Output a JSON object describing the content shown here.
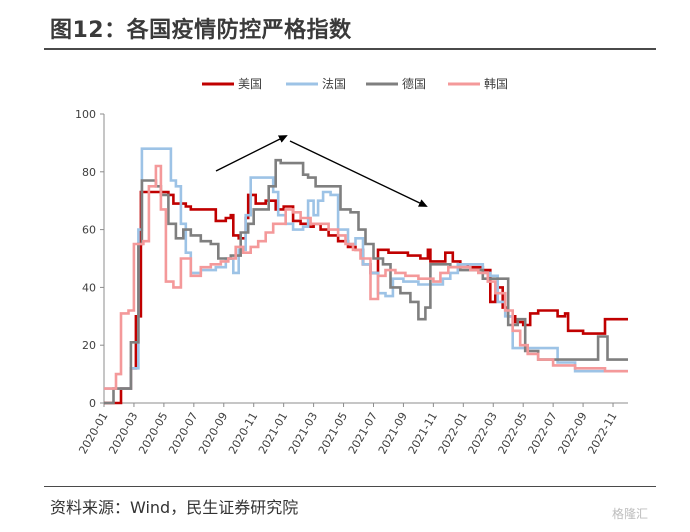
{
  "title": "图12：各国疫情防控严格指数",
  "source": "资料来源：Wind，民生证券研究院",
  "watermark": "格隆汇",
  "chart_data": {
    "type": "line",
    "title": "图12：各国疫情防控严格指数",
    "xlabel": "",
    "ylabel": "",
    "ylim": [
      0,
      100
    ],
    "yticks": [
      0,
      20,
      40,
      60,
      80,
      100
    ],
    "xlim": [
      "2020-01",
      "2022-12"
    ],
    "xticks": [
      "2020-01",
      "2020-03",
      "2020-05",
      "2020-07",
      "2020-09",
      "2020-11",
      "2021-01",
      "2021-03",
      "2021-05",
      "2021-07",
      "2021-09",
      "2021-11",
      "2022-01",
      "2022-03",
      "2022-05",
      "2022-07",
      "2022-09",
      "2022-11"
    ],
    "grid": false,
    "legend_position": "top",
    "series": [
      {
        "name": "美国",
        "color": "#c00000",
        "points": [
          [
            "2020-01-01",
            0
          ],
          [
            "2020-01-25",
            0
          ],
          [
            "2020-02-05",
            5
          ],
          [
            "2020-02-18",
            5
          ],
          [
            "2020-02-25",
            12
          ],
          [
            "2020-03-05",
            30
          ],
          [
            "2020-03-15",
            73
          ],
          [
            "2020-04-20",
            73
          ],
          [
            "2020-05-10",
            72
          ],
          [
            "2020-05-20",
            69
          ],
          [
            "2020-06-15",
            68
          ],
          [
            "2020-06-25",
            67
          ],
          [
            "2020-07-20",
            67
          ],
          [
            "2020-08-15",
            63
          ],
          [
            "2020-09-05",
            64
          ],
          [
            "2020-09-15",
            65
          ],
          [
            "2020-09-20",
            58
          ],
          [
            "2020-10-01",
            57
          ],
          [
            "2020-10-15",
            64
          ],
          [
            "2020-10-20",
            72
          ],
          [
            "2020-11-05",
            69
          ],
          [
            "2020-11-25",
            70
          ],
          [
            "2020-12-15",
            67
          ],
          [
            "2021-01-01",
            68
          ],
          [
            "2021-01-20",
            63
          ],
          [
            "2021-02-05",
            62
          ],
          [
            "2021-02-20",
            61
          ],
          [
            "2021-03-01",
            62
          ],
          [
            "2021-03-15",
            60
          ],
          [
            "2021-04-01",
            58
          ],
          [
            "2021-04-20",
            56
          ],
          [
            "2021-05-10",
            54
          ],
          [
            "2021-05-25",
            53
          ],
          [
            "2021-06-10",
            48
          ],
          [
            "2021-06-25",
            45
          ],
          [
            "2021-07-10",
            53
          ],
          [
            "2021-08-01",
            52
          ],
          [
            "2021-09-10",
            51
          ],
          [
            "2021-10-05",
            50
          ],
          [
            "2021-10-20",
            53
          ],
          [
            "2021-10-25",
            49
          ],
          [
            "2021-11-10",
            49
          ],
          [
            "2021-11-25",
            52
          ],
          [
            "2021-12-10",
            49
          ],
          [
            "2021-12-25",
            48
          ],
          [
            "2022-01-10",
            47
          ],
          [
            "2022-01-25",
            47
          ],
          [
            "2022-02-10",
            46
          ],
          [
            "2022-02-25",
            35
          ],
          [
            "2022-03-05",
            40
          ],
          [
            "2022-03-20",
            33
          ],
          [
            "2022-04-01",
            30
          ],
          [
            "2022-04-15",
            28
          ],
          [
            "2022-05-01",
            27
          ],
          [
            "2022-05-15",
            31
          ],
          [
            "2022-06-01",
            32
          ],
          [
            "2022-06-20",
            32
          ],
          [
            "2022-07-10",
            30
          ],
          [
            "2022-07-25",
            31
          ],
          [
            "2022-08-01",
            25
          ],
          [
            "2022-09-01",
            24
          ],
          [
            "2022-10-05",
            24
          ],
          [
            "2022-10-15",
            29
          ],
          [
            "2022-11-15",
            29
          ],
          [
            "2022-12-01",
            29
          ]
        ]
      },
      {
        "name": "法国",
        "color": "#9dc3e6",
        "points": [
          [
            "2020-01-01",
            5
          ],
          [
            "2020-02-10",
            5
          ],
          [
            "2020-02-25",
            12
          ],
          [
            "2020-03-10",
            60
          ],
          [
            "2020-03-17",
            88
          ],
          [
            "2020-05-01",
            88
          ],
          [
            "2020-05-15",
            77
          ],
          [
            "2020-05-25",
            75
          ],
          [
            "2020-06-05",
            62
          ],
          [
            "2020-06-15",
            52
          ],
          [
            "2020-06-25",
            45
          ],
          [
            "2020-07-15",
            46
          ],
          [
            "2020-08-15",
            47
          ],
          [
            "2020-09-05",
            50
          ],
          [
            "2020-09-20",
            45
          ],
          [
            "2020-10-01",
            53
          ],
          [
            "2020-10-15",
            65
          ],
          [
            "2020-10-25",
            78
          ],
          [
            "2020-11-10",
            78
          ],
          [
            "2020-12-10",
            73
          ],
          [
            "2020-12-20",
            65
          ],
          [
            "2021-01-05",
            62
          ],
          [
            "2021-01-20",
            60
          ],
          [
            "2021-02-10",
            61
          ],
          [
            "2021-02-20",
            70
          ],
          [
            "2021-03-01",
            65
          ],
          [
            "2021-03-10",
            70
          ],
          [
            "2021-03-20",
            73
          ],
          [
            "2021-04-05",
            72
          ],
          [
            "2021-04-20",
            60
          ],
          [
            "2021-05-10",
            55
          ],
          [
            "2021-05-25",
            57
          ],
          [
            "2021-06-10",
            48
          ],
          [
            "2021-06-25",
            45
          ],
          [
            "2021-07-10",
            38
          ],
          [
            "2021-07-25",
            37
          ],
          [
            "2021-08-10",
            43
          ],
          [
            "2021-09-01",
            42
          ],
          [
            "2021-10-01",
            41
          ],
          [
            "2021-11-01",
            41
          ],
          [
            "2021-11-20",
            43
          ],
          [
            "2021-12-05",
            45
          ],
          [
            "2021-12-20",
            48
          ],
          [
            "2022-01-20",
            48
          ],
          [
            "2022-02-10",
            45
          ],
          [
            "2022-02-25",
            44
          ],
          [
            "2022-03-10",
            35
          ],
          [
            "2022-03-25",
            30
          ],
          [
            "2022-04-10",
            19
          ],
          [
            "2022-05-15",
            19
          ],
          [
            "2022-06-15",
            19
          ],
          [
            "2022-07-10",
            14
          ],
          [
            "2022-08-15",
            11
          ],
          [
            "2022-12-01",
            11
          ]
        ]
      },
      {
        "name": "德国",
        "color": "#7f7f7f",
        "points": [
          [
            "2020-01-01",
            0
          ],
          [
            "2020-01-20",
            5
          ],
          [
            "2020-02-15",
            5
          ],
          [
            "2020-02-25",
            21
          ],
          [
            "2020-03-10",
            55
          ],
          [
            "2020-03-17",
            77
          ],
          [
            "2020-04-15",
            75
          ],
          [
            "2020-04-25",
            72
          ],
          [
            "2020-05-10",
            62
          ],
          [
            "2020-05-25",
            57
          ],
          [
            "2020-06-10",
            60
          ],
          [
            "2020-06-25",
            58
          ],
          [
            "2020-07-15",
            56
          ],
          [
            "2020-08-05",
            55
          ],
          [
            "2020-08-20",
            50
          ],
          [
            "2020-09-15",
            51
          ],
          [
            "2020-10-05",
            59
          ],
          [
            "2020-10-20",
            62
          ],
          [
            "2020-11-01",
            67
          ],
          [
            "2020-11-15",
            67
          ],
          [
            "2020-12-01",
            75
          ],
          [
            "2020-12-15",
            84
          ],
          [
            "2020-12-25",
            83
          ],
          [
            "2021-01-20",
            83
          ],
          [
            "2021-02-10",
            79
          ],
          [
            "2021-02-20",
            78
          ],
          [
            "2021-03-05",
            75
          ],
          [
            "2021-04-15",
            75
          ],
          [
            "2021-04-25",
            67
          ],
          [
            "2021-05-15",
            66
          ],
          [
            "2021-06-01",
            60
          ],
          [
            "2021-06-15",
            55
          ],
          [
            "2021-07-01",
            50
          ],
          [
            "2021-07-20",
            48
          ],
          [
            "2021-08-05",
            40
          ],
          [
            "2021-08-25",
            38
          ],
          [
            "2021-09-15",
            35
          ],
          [
            "2021-10-01",
            29
          ],
          [
            "2021-10-15",
            33
          ],
          [
            "2021-10-25",
            48
          ],
          [
            "2021-11-20",
            48
          ],
          [
            "2021-12-05",
            47
          ],
          [
            "2021-12-25",
            46
          ],
          [
            "2022-01-15",
            46
          ],
          [
            "2022-02-10",
            43
          ],
          [
            "2022-03-01",
            43
          ],
          [
            "2022-03-20",
            43
          ],
          [
            "2022-04-01",
            27
          ],
          [
            "2022-04-20",
            29
          ],
          [
            "2022-05-05",
            18
          ],
          [
            "2022-06-01",
            15
          ],
          [
            "2022-07-01",
            15
          ],
          [
            "2022-08-01",
            15
          ],
          [
            "2022-09-01",
            15
          ],
          [
            "2022-10-01",
            23
          ],
          [
            "2022-10-20",
            15
          ],
          [
            "2022-12-01",
            15
          ]
        ]
      },
      {
        "name": "韩国",
        "color": "#f4999a",
        "points": [
          [
            "2020-01-01",
            5
          ],
          [
            "2020-01-25",
            10
          ],
          [
            "2020-02-05",
            31
          ],
          [
            "2020-02-20",
            32
          ],
          [
            "2020-03-01",
            55
          ],
          [
            "2020-03-20",
            56
          ],
          [
            "2020-04-01",
            75
          ],
          [
            "2020-04-15",
            82
          ],
          [
            "2020-04-25",
            67
          ],
          [
            "2020-05-05",
            42
          ],
          [
            "2020-05-20",
            40
          ],
          [
            "2020-06-05",
            50
          ],
          [
            "2020-06-25",
            44
          ],
          [
            "2020-07-15",
            47
          ],
          [
            "2020-08-05",
            48
          ],
          [
            "2020-08-25",
            49
          ],
          [
            "2020-09-10",
            50
          ],
          [
            "2020-09-25",
            54
          ],
          [
            "2020-10-10",
            52
          ],
          [
            "2020-10-25",
            54
          ],
          [
            "2020-11-10",
            56
          ],
          [
            "2020-11-25",
            59
          ],
          [
            "2020-12-10",
            62
          ],
          [
            "2021-01-05",
            67
          ],
          [
            "2021-01-20",
            66
          ],
          [
            "2021-02-05",
            64
          ],
          [
            "2021-02-25",
            62
          ],
          [
            "2021-03-15",
            62
          ],
          [
            "2021-04-01",
            60
          ],
          [
            "2021-04-20",
            58
          ],
          [
            "2021-05-05",
            55
          ],
          [
            "2021-05-20",
            53
          ],
          [
            "2021-06-05",
            50
          ],
          [
            "2021-06-25",
            36
          ],
          [
            "2021-07-10",
            44
          ],
          [
            "2021-07-25",
            46
          ],
          [
            "2021-08-15",
            45
          ],
          [
            "2021-09-05",
            44
          ],
          [
            "2021-10-01",
            43
          ],
          [
            "2021-11-01",
            42
          ],
          [
            "2021-11-15",
            45
          ],
          [
            "2021-12-01",
            47
          ],
          [
            "2021-12-20",
            47
          ],
          [
            "2022-01-15",
            46
          ],
          [
            "2022-02-01",
            45
          ],
          [
            "2022-02-20",
            42
          ],
          [
            "2022-03-05",
            38
          ],
          [
            "2022-03-25",
            32
          ],
          [
            "2022-04-10",
            25
          ],
          [
            "2022-04-25",
            20
          ],
          [
            "2022-05-10",
            17
          ],
          [
            "2022-06-01",
            15
          ],
          [
            "2022-07-01",
            13
          ],
          [
            "2022-08-15",
            12
          ],
          [
            "2022-09-15",
            12
          ],
          [
            "2022-10-15",
            11
          ],
          [
            "2022-12-01",
            11
          ]
        ]
      }
    ],
    "annotations": [
      "arrow-up-trend",
      "arrow-down-trend"
    ]
  }
}
